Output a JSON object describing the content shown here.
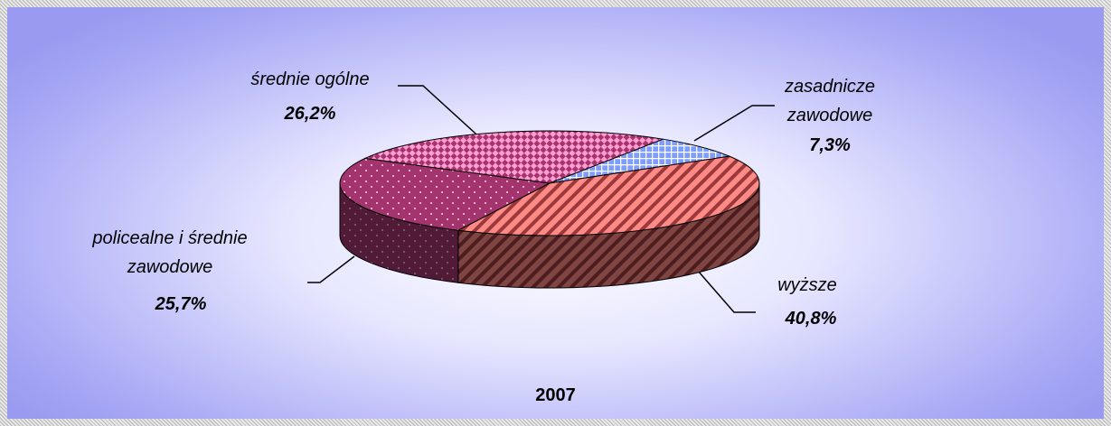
{
  "chart_data": {
    "type": "pie",
    "title": "2007",
    "categories": [
      "zasadnicze zawodowe",
      "wyższe",
      "policealne i średnie zawodowe",
      "średnie ogólne"
    ],
    "values": [
      7.3,
      40.8,
      25.7,
      26.2
    ],
    "value_labels": [
      "7,3%",
      "40,8%",
      "25,7%",
      "26,2%"
    ],
    "colors": [
      "#7f9cff",
      "#ff8a86",
      "#a3346e",
      "#ff9fd0"
    ]
  }
}
